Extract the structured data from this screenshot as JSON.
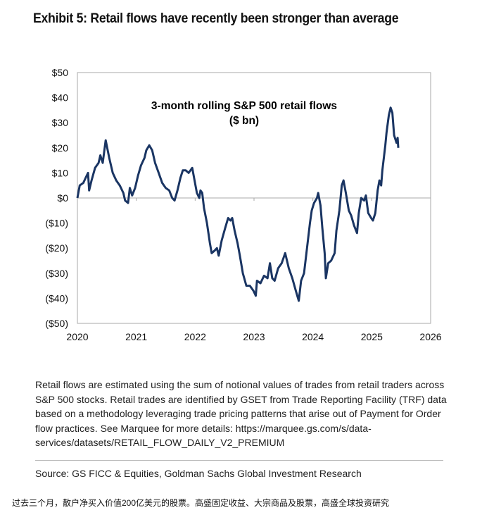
{
  "header": {
    "title": "Exhibit 5: Retail flows have recently been stronger than average"
  },
  "chart_data": {
    "type": "line",
    "title": "3-month rolling S&P 500 retail flows",
    "subtitle": "($ bn)",
    "xlabel": "",
    "ylabel": "",
    "xlim": [
      2020,
      2026
    ],
    "ylim": [
      -50,
      50
    ],
    "x_ticks": [
      "2020",
      "2021",
      "2022",
      "2023",
      "2024",
      "2025",
      "2026"
    ],
    "y_ticks": [
      "$50",
      "$40",
      "$30",
      "$20",
      "$10",
      "$0",
      "($10)",
      "($20)",
      "($30)",
      "($40)",
      "($50)"
    ],
    "grid": false,
    "line_color": "#1a3563",
    "series": [
      {
        "name": "3-month rolling S&P 500 retail flows",
        "x": [
          2020.0,
          2020.04,
          2020.1,
          2020.14,
          2020.18,
          2020.2,
          2020.24,
          2020.3,
          2020.36,
          2020.39,
          2020.43,
          2020.48,
          2020.54,
          2020.6,
          2020.66,
          2020.72,
          2020.78,
          2020.81,
          2020.86,
          2020.89,
          2020.93,
          2020.98,
          2021.03,
          2021.08,
          2021.14,
          2021.17,
          2021.22,
          2021.27,
          2021.32,
          2021.38,
          2021.44,
          2021.5,
          2021.56,
          2021.61,
          2021.65,
          2021.7,
          2021.75,
          2021.79,
          2021.84,
          2021.89,
          2021.95,
          2021.99,
          2022.03,
          2022.07,
          2022.09,
          2022.12,
          2022.15,
          2022.2,
          2022.25,
          2022.28,
          2022.33,
          2022.37,
          2022.4,
          2022.45,
          2022.51,
          2022.56,
          2022.6,
          2022.63,
          2022.67,
          2022.72,
          2022.76,
          2022.81,
          2022.87,
          2022.93,
          2022.99,
          2023.03,
          2023.05,
          2023.11,
          2023.17,
          2023.23,
          2023.27,
          2023.31,
          2023.35,
          2023.41,
          2023.47,
          2023.53,
          2023.59,
          2023.65,
          2023.71,
          2023.76,
          2023.8,
          2023.85,
          2023.9,
          2023.95,
          2023.98,
          2024.02,
          2024.07,
          2024.09,
          2024.13,
          2024.16,
          2024.2,
          2024.22,
          2024.26,
          2024.31,
          2024.37,
          2024.4,
          2024.45,
          2024.49,
          2024.52,
          2024.56,
          2024.61,
          2024.65,
          2024.7,
          2024.75,
          2024.78,
          2024.82,
          2024.87,
          2024.9,
          2024.94,
          2024.99,
          2025.02,
          2025.06,
          2025.1,
          2025.13,
          2025.16,
          2025.18,
          2025.23,
          2025.25,
          2025.29,
          2025.32,
          2025.35,
          2025.38,
          2025.42,
          2025.44,
          2025.45
        ],
        "y": [
          0,
          5,
          6,
          8,
          10,
          3,
          7,
          12,
          14,
          17,
          14,
          23,
          16,
          10,
          7,
          5,
          2,
          -1,
          -2,
          4,
          1,
          4,
          9,
          13,
          16,
          19,
          21,
          19,
          14,
          10,
          6,
          4,
          3,
          0,
          -1,
          3,
          8,
          11,
          11,
          10,
          12,
          7,
          2,
          0,
          3,
          2,
          -4,
          -10,
          -18,
          -22,
          -21,
          -20,
          -23,
          -17,
          -12,
          -8,
          -9,
          -8,
          -13,
          -18,
          -23,
          -30,
          -35,
          -35,
          -37,
          -39,
          -33,
          -34,
          -31,
          -32,
          -26,
          -32,
          -33,
          -28,
          -26,
          -22,
          -28,
          -32,
          -37,
          -41,
          -33,
          -30,
          -20,
          -10,
          -5,
          -2,
          0,
          2,
          -3,
          -12,
          -22,
          -32,
          -26,
          -25,
          -22,
          -13,
          -5,
          5,
          7,
          2,
          -5,
          -7,
          -11,
          -14,
          -6,
          0,
          -1,
          1,
          -6,
          -8,
          -9,
          -6,
          3,
          7,
          5,
          11,
          21,
          26,
          33,
          36,
          34,
          25,
          22,
          24,
          20
        ]
      }
    ]
  },
  "notes": "Retail flows are estimated using the sum of notional values of trades from retail traders across S&P 500 stocks. Retail trades are identified by GSET from Trade Reporting Facility (TRF) data based on a methodology leveraging trade pricing patterns that arise out of Payment for Order flow practices. See Marquee for more details: https://marquee.gs.com/s/data-services/datasets/RETAIL_FLOW_DAILY_V2_PREMIUM",
  "source": "Source: GS FICC & Equities, Goldman Sachs Global Investment Research",
  "caption": "过去三个月，散户净买入价值200亿美元的股票。高盛固定收益、大宗商品及股票，高盛全球投资研究"
}
